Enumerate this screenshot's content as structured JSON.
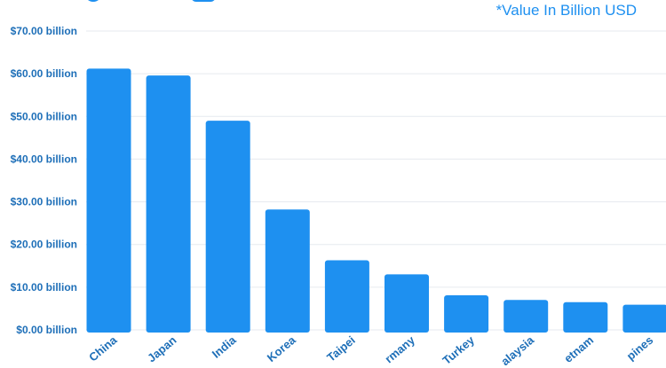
{
  "note": "*Value In Billion USD",
  "colors": {
    "bar": "#1e90f0",
    "tick_text": "#1e6fb8",
    "grid": "#e6eaef"
  },
  "chart_data": {
    "type": "bar",
    "title": "",
    "categories": [
      "China",
      "Japan",
      "India",
      "Korea",
      "Taipei",
      "rmany",
      "Turkey",
      "alaysia",
      "etnam",
      "pines"
    ],
    "values": [
      61.2,
      59.6,
      49.0,
      28.2,
      16.3,
      13.0,
      8.1,
      7.0,
      6.5,
      5.9
    ],
    "yticks": [
      "$0.00 billion",
      "$10.00 billion",
      "$20.00 billion",
      "$30.00 billion",
      "$40.00 billion",
      "$50.00 billion",
      "$60.00 billion",
      "$70.00 billion"
    ],
    "ylim": [
      0,
      70
    ],
    "xlabel": "",
    "ylabel": "",
    "grid": true
  }
}
